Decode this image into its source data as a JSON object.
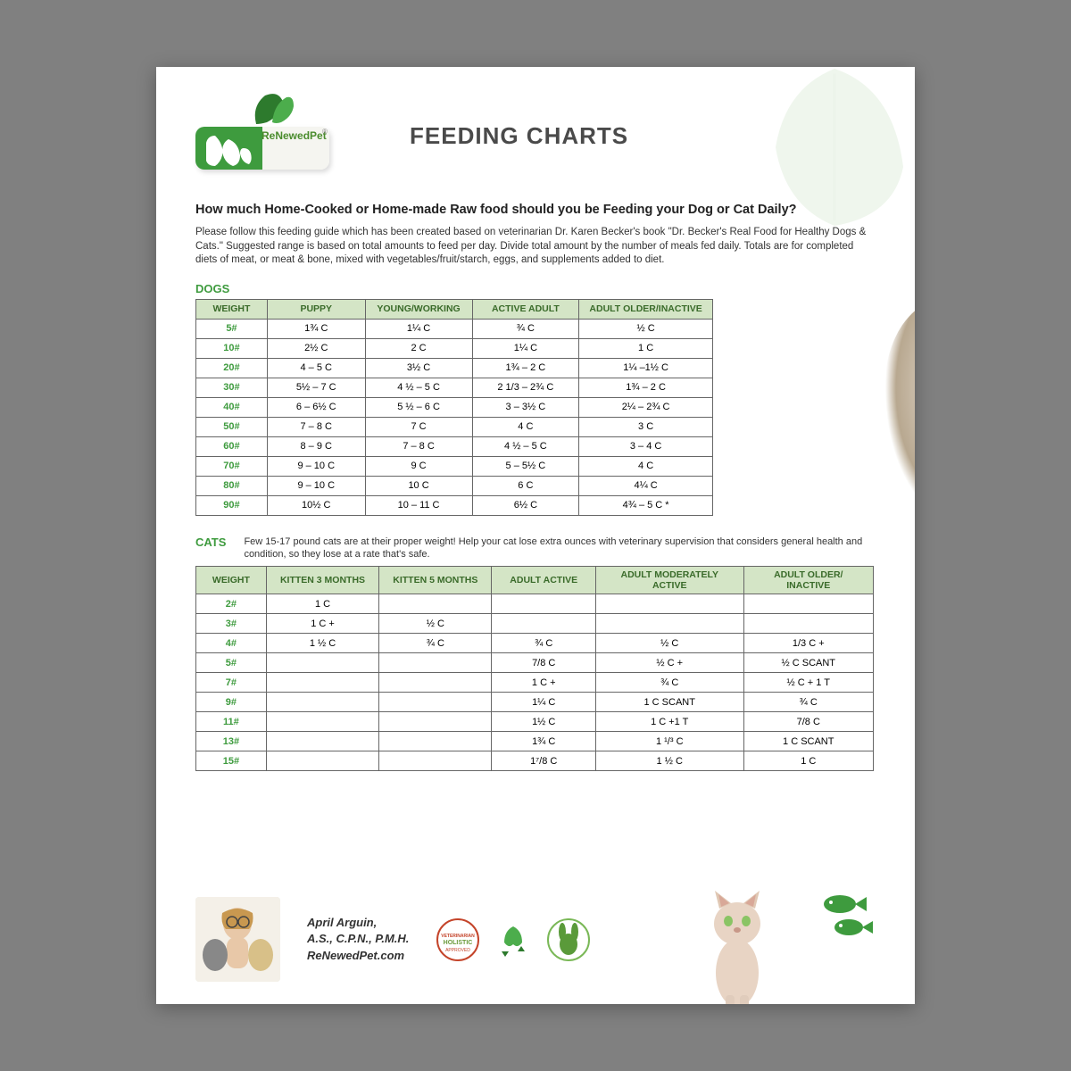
{
  "brand": "ReNewedPet",
  "title": "FEEDING CHARTS",
  "subtitle": "How much Home-Cooked or Home-made Raw food should you be Feeding your Dog or Cat Daily?",
  "intro": "Please follow this feeding guide which has been created based on veterinarian Dr. Karen Becker's book \"Dr. Becker's Real Food for Healthy Dogs & Cats.\" Suggested range is based on total amounts to feed per day.  Divide total amount by the number of meals fed daily. Totals are for completed diets of meat, or meat & bone, mixed with vegetables/fruit/starch, eggs, and supplements added to diet.",
  "dogs": {
    "label": "DOGS",
    "columns": [
      "WEIGHT",
      "PUPPY",
      "YOUNG/WORKING",
      "ACTIVE ADULT",
      "ADULT OLDER/INACTIVE"
    ],
    "rows": [
      [
        "5#",
        "1¾ C",
        "1¼ C",
        "¾ C",
        "½ C"
      ],
      [
        "10#",
        "2½ C",
        "2 C",
        "1¼ C",
        "1 C"
      ],
      [
        "20#",
        "4 – 5 C",
        "3½ C",
        "1¾ – 2 C",
        "1¼ –1½ C"
      ],
      [
        "30#",
        "5½ – 7 C",
        "4 ½ – 5 C",
        "2 1/3 – 2¾ C",
        "1¾ – 2 C"
      ],
      [
        "40#",
        "6 – 6½ C",
        "5 ½ – 6 C",
        "3 – 3½ C",
        "2¼ – 2¾ C"
      ],
      [
        "50#",
        "7 – 8 C",
        "7 C",
        "4 C",
        "3 C"
      ],
      [
        "60#",
        "8 – 9 C",
        "7 – 8 C",
        "4 ½ – 5 C",
        "3 – 4 C"
      ],
      [
        "70#",
        "9 – 10 C",
        "9 C",
        "5 – 5½ C",
        "4 C"
      ],
      [
        "80#",
        "9 – 10 C",
        "10 C",
        "6 C",
        "4¼ C"
      ],
      [
        "90#",
        "10½ C",
        "10 – 11 C",
        "6½ C",
        "4¾ – 5 C *"
      ]
    ]
  },
  "cats": {
    "label": "CATS",
    "note": "Few 15-17 pound cats are at their proper weight! Help your cat lose extra ounces with veterinary supervision that considers general health and condition, so they lose at a rate that's safe.",
    "columns": [
      "WEIGHT",
      "KITTEN 3 MONTHS",
      "KITTEN 5 MONTHS",
      "ADULT ACTIVE",
      "ADULT MODERATELY ACTIVE",
      "ADULT OLDER/ INACTIVE"
    ],
    "rows": [
      [
        "2#",
        "1 C",
        "",
        "",
        "",
        ""
      ],
      [
        "3#",
        "1 C +",
        "½ C",
        "",
        "",
        ""
      ],
      [
        "4#",
        "1 ½ C",
        "¾ C",
        "¾ C",
        "½ C",
        "1/3 C +"
      ],
      [
        "5#",
        "",
        "",
        "7/8 C",
        "½ C +",
        "½ C SCANT"
      ],
      [
        "7#",
        "",
        "",
        "1 C +",
        "¾ C",
        "½ C + 1 T"
      ],
      [
        "9#",
        "",
        "",
        "1¼ C",
        "1 C SCANT",
        "¾ C"
      ],
      [
        "11#",
        "",
        "",
        "1½ C",
        "1 C +1 T",
        "7/8 C"
      ],
      [
        "13#",
        "",
        "",
        "1¾ C",
        "1 ¹/³ C",
        "1 C SCANT"
      ],
      [
        "15#",
        "",
        "",
        "1⁷/8 C",
        "1 ½ C",
        "1 C"
      ]
    ]
  },
  "author": {
    "name": "April Arguin,",
    "creds": "A.S., C.P.N., P.M.H.",
    "site": "ReNewedPet.com"
  },
  "colors": {
    "green": "#3e9b3e",
    "header_bg": "#d4e5c6",
    "header_text": "#3a6b2a"
  }
}
